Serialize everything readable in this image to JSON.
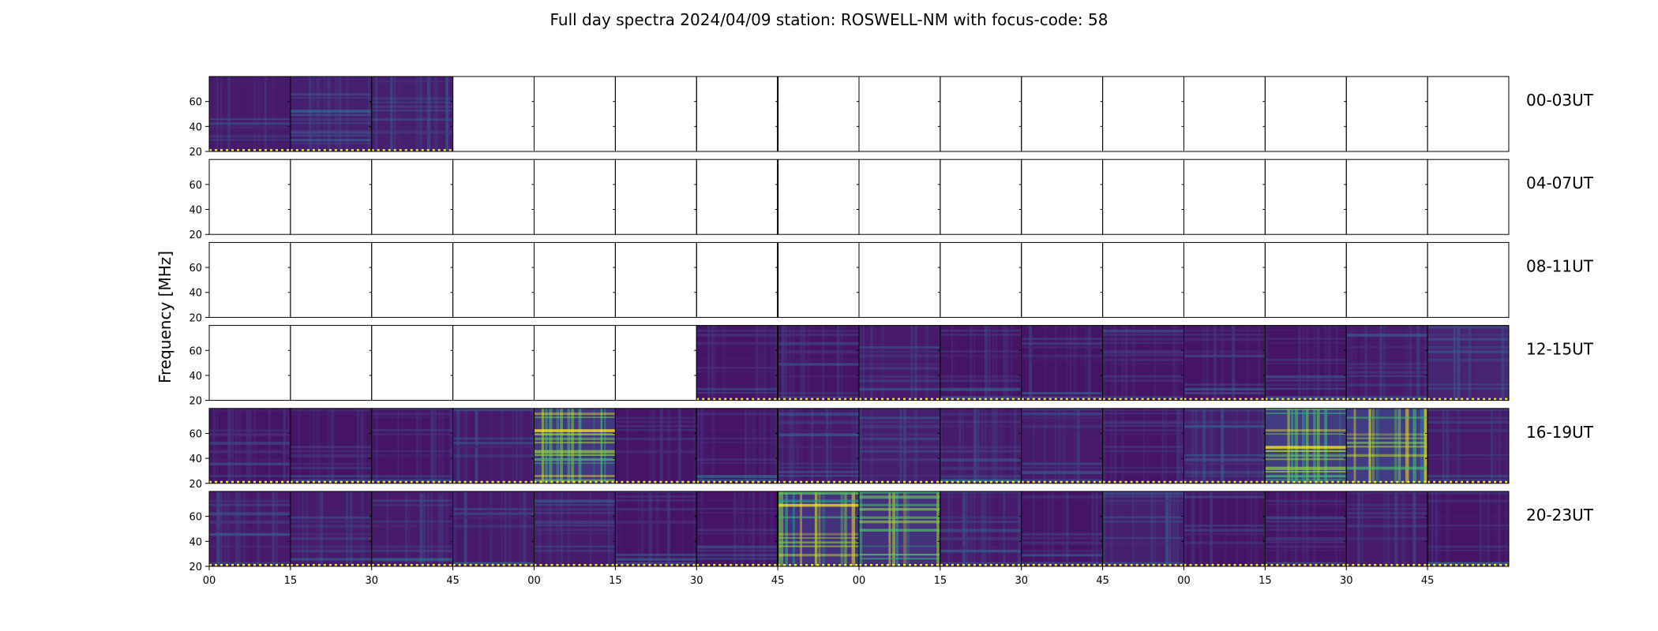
{
  "chart_data": {
    "type": "heatmap",
    "title": "Full day spectra 2024/04/09 station: ROSWELL-NM with focus-code: 58",
    "ylabel": "Frequency [MHz]",
    "xlabel": "",
    "y_ticks": [
      "20",
      "40",
      "60"
    ],
    "ylim": [
      20,
      80
    ],
    "x_ticks": [
      "00",
      "15",
      "30",
      "45",
      "00",
      "15",
      "30",
      "45",
      "00",
      "15",
      "30",
      "45",
      "00",
      "15",
      "30",
      "45"
    ],
    "colormap": "viridis",
    "rows": [
      {
        "label": "00-03UT",
        "panels": [
          1,
          1,
          1,
          0,
          0,
          0,
          0,
          0,
          0,
          0,
          0,
          0,
          0,
          0,
          0,
          0
        ],
        "intensity": [
          2,
          3,
          3,
          0,
          0,
          0,
          0,
          0,
          0,
          0,
          0,
          0,
          0,
          0,
          0,
          0
        ]
      },
      {
        "label": "04-07UT",
        "panels": [
          0,
          0,
          0,
          0,
          0,
          0,
          0,
          0,
          0,
          0,
          0,
          0,
          0,
          0,
          0,
          0
        ],
        "intensity": [
          0,
          0,
          0,
          0,
          0,
          0,
          0,
          0,
          0,
          0,
          0,
          0,
          0,
          0,
          0,
          0
        ]
      },
      {
        "label": "08-11UT",
        "panels": [
          0,
          0,
          0,
          0,
          0,
          0,
          0,
          0,
          0,
          0,
          0,
          0,
          0,
          0,
          0,
          0
        ],
        "intensity": [
          0,
          0,
          0,
          0,
          0,
          0,
          0,
          0,
          0,
          0,
          0,
          0,
          0,
          0,
          0,
          0
        ]
      },
      {
        "label": "12-15UT",
        "panels": [
          0,
          0,
          0,
          0,
          0,
          0,
          1,
          1,
          1,
          1,
          1,
          1,
          1,
          1,
          1,
          1
        ],
        "intensity": [
          0,
          0,
          0,
          0,
          0,
          0,
          1,
          1,
          2,
          1,
          1,
          1,
          1,
          1,
          2,
          4
        ]
      },
      {
        "label": "16-19UT",
        "panels": [
          1,
          1,
          1,
          1,
          1,
          1,
          1,
          1,
          1,
          1,
          1,
          1,
          1,
          1,
          1,
          1
        ],
        "intensity": [
          1,
          1,
          1,
          2,
          8,
          1,
          1,
          2,
          3,
          2,
          2,
          1,
          3,
          9,
          9,
          2
        ]
      },
      {
        "label": "20-23UT",
        "panels": [
          1,
          1,
          1,
          1,
          1,
          1,
          1,
          1,
          1,
          1,
          1,
          1,
          1,
          1,
          1,
          1
        ],
        "intensity": [
          2,
          2,
          2,
          2,
          2,
          1,
          1,
          7,
          7,
          2,
          1,
          3,
          1,
          1,
          2,
          1
        ]
      }
    ]
  }
}
